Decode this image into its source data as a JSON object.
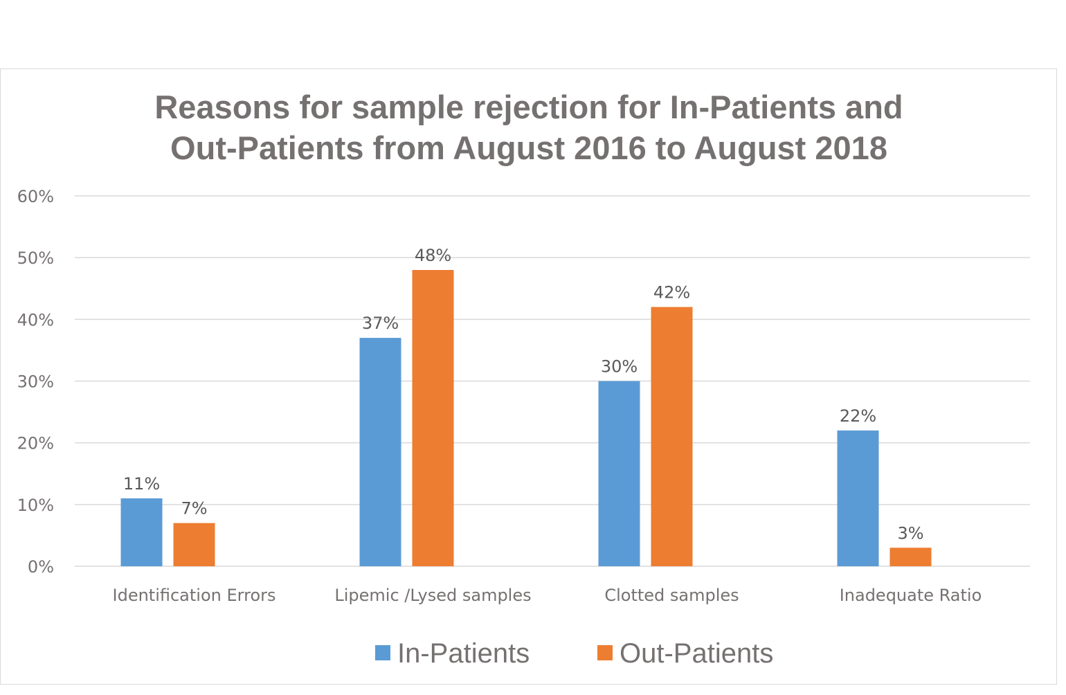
{
  "chart_data": {
    "type": "bar",
    "title_line1": "Reasons for sample rejection for In-Patients and",
    "title_line2": "Out-Patients from August 2016 to August 2018",
    "categories": [
      "Identification Errors",
      "Lipemic /Lysed samples",
      "Clotted samples",
      "Inadequate Ratio"
    ],
    "series": [
      {
        "name": "In-Patients",
        "color": "#5b9bd5",
        "values": [
          11,
          37,
          30,
          22
        ]
      },
      {
        "name": "Out-Patients",
        "color": "#ed7d31",
        "values": [
          7,
          48,
          42,
          3
        ]
      }
    ],
    "ylim": [
      0,
      60
    ],
    "yticks": [
      "0%",
      "10%",
      "20%",
      "30%",
      "40%",
      "50%",
      "60%"
    ],
    "value_suffix": "%",
    "grid": true,
    "legend": "bottom"
  }
}
